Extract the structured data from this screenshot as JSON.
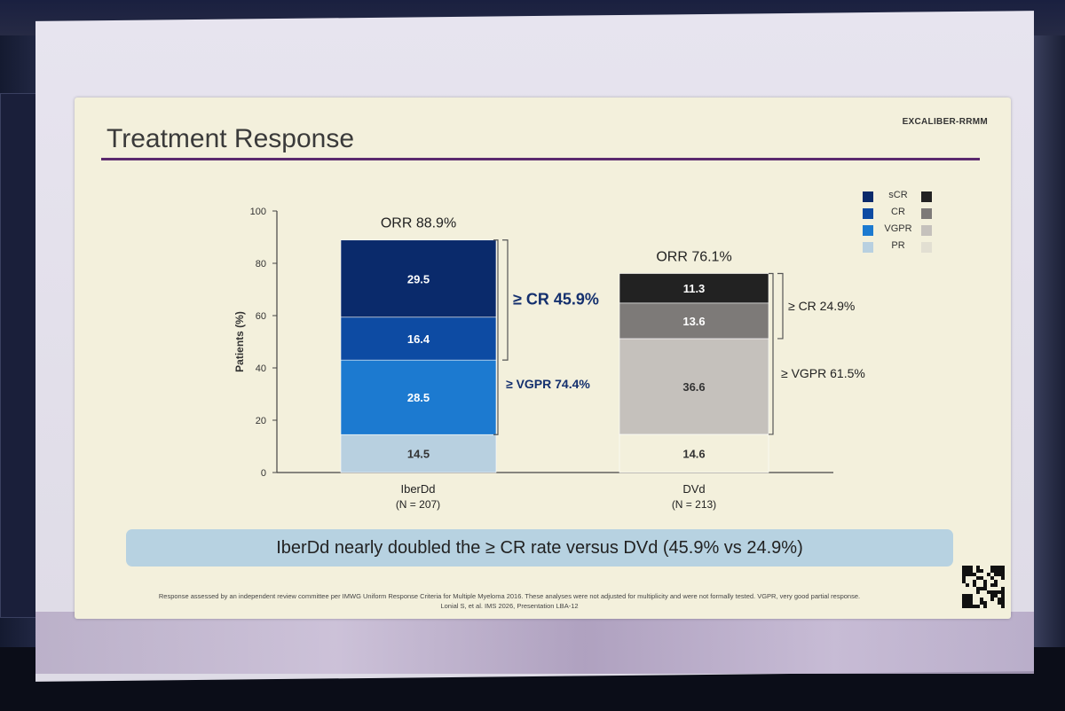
{
  "slide": {
    "title": "Treatment Response",
    "study_tag": "EXCALIBER-RRMM",
    "banner": "IberDd nearly doubled the ≥ CR rate versus DVd (45.9% vs 24.9%)",
    "footnote_1": "Response assessed by an independent review committee per IMWG Uniform Response Criteria for Multiple Myeloma 2016. These analyses were not adjusted for multiplicity and were not formally tested. VGPR, very good partial response.",
    "footnote_2": "Lonial S, et al. IMS 2026, Presentation LBA-12"
  },
  "chart_data": {
    "type": "bar",
    "stacked": true,
    "title": "",
    "ylabel": "Patients (%)",
    "ylim": [
      0,
      100
    ],
    "yticks": [
      0,
      20,
      40,
      60,
      80,
      100
    ],
    "categories": [
      "IberDd",
      "DVd"
    ],
    "category_sublabels": [
      "(N = 207)",
      "(N = 213)"
    ],
    "series": [
      {
        "name": "PR",
        "values": [
          14.5,
          14.6
        ]
      },
      {
        "name": "VGPR",
        "values": [
          28.5,
          36.6
        ]
      },
      {
        "name": "CR",
        "values": [
          16.4,
          13.6
        ]
      },
      {
        "name": "sCR",
        "values": [
          29.5,
          11.3
        ]
      }
    ],
    "colors": {
      "IberDd": {
        "PR": "#b8d0e0",
        "VGPR": "#1c7ad0",
        "CR": "#0d4ba3",
        "sCR": "#0a2a6b"
      },
      "DVd": {
        "PR": "#f3f0dc",
        "VGPR": "#c5c1bc",
        "CR": "#7d7a78",
        "sCR": "#222222"
      }
    },
    "totals": [
      "ORR 88.9%",
      "ORR 76.1%"
    ],
    "bracket_labels": {
      "IberDd": {
        "cr": "≥ CR 45.9%",
        "vgpr": "≥ VGPR 74.4%"
      },
      "DVd": {
        "cr": "≥ CR 24.9%",
        "vgpr": "≥ VGPR 61.5%"
      }
    },
    "legend": [
      "sCR",
      "CR",
      "VGPR",
      "PR"
    ],
    "legend_position": "top-right",
    "grid": false
  }
}
